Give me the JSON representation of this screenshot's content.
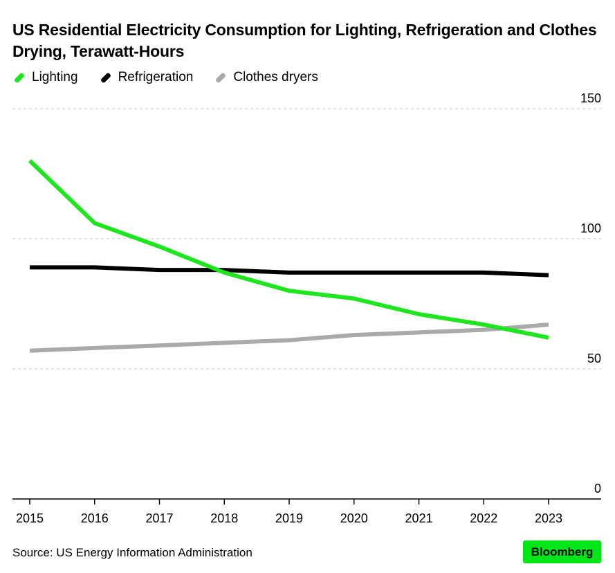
{
  "chart_data": {
    "type": "line",
    "title": "US Residential Electricity Consumption for Lighting, Refrigeration and Clothes Drying, Terawatt-Hours",
    "x": [
      "2015",
      "2016",
      "2017",
      "2018",
      "2019",
      "2020",
      "2021",
      "2022",
      "2023"
    ],
    "ylim": [
      0,
      150
    ],
    "yticks": [
      0,
      50,
      100,
      150
    ],
    "ytick_labels": [
      "0",
      "50",
      "100",
      "150"
    ],
    "y_axis_side": "right",
    "grid": "horizontal dashed",
    "legend_position": "top-left",
    "series": [
      {
        "name": "Lighting",
        "color": "#1ee61e",
        "values": [
          130,
          106,
          97,
          87,
          80,
          77,
          71,
          67,
          62
        ]
      },
      {
        "name": "Refrigeration",
        "color": "#000000",
        "values": [
          89,
          89,
          88,
          88,
          87,
          87,
          87,
          87,
          86
        ]
      },
      {
        "name": "Clothes dryers",
        "color": "#aaaaaa",
        "values": [
          57,
          58,
          59,
          60,
          61,
          63,
          64,
          65,
          67
        ]
      }
    ]
  },
  "footer": {
    "source": "Source: US Energy Information Administration",
    "brand": "Bloomberg"
  }
}
